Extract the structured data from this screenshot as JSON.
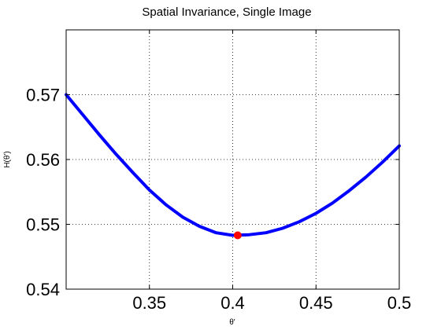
{
  "chart_data": {
    "type": "line",
    "title": "Spatial Invariance, Single Image",
    "xlabel": "θ'",
    "ylabel": "H(θ')",
    "xlim": [
      0.3,
      0.5
    ],
    "ylim": [
      0.54,
      0.58
    ],
    "xticks": [
      0.35,
      0.4,
      0.45,
      0.5
    ],
    "xtick_labels": [
      "0.35",
      "0.4",
      "0.45",
      "0.5"
    ],
    "yticks": [
      0.54,
      0.55,
      0.56,
      0.57
    ],
    "ytick_labels": [
      "0.54",
      "0.55",
      "0.56",
      "0.57"
    ],
    "grid": true,
    "series": [
      {
        "color": "#0000ff",
        "x": [
          0.3,
          0.31,
          0.32,
          0.33,
          0.34,
          0.35,
          0.36,
          0.37,
          0.38,
          0.39,
          0.4,
          0.41,
          0.42,
          0.43,
          0.44,
          0.45,
          0.46,
          0.47,
          0.48,
          0.49,
          0.5
        ],
        "y": [
          0.57,
          0.5669,
          0.5638,
          0.5608,
          0.558,
          0.5553,
          0.553,
          0.5511,
          0.5497,
          0.5487,
          0.5483,
          0.5484,
          0.5487,
          0.5494,
          0.5504,
          0.5517,
          0.5533,
          0.5552,
          0.5573,
          0.5596,
          0.5621
        ]
      }
    ],
    "marker": {
      "x": 0.403,
      "y": 0.5483,
      "color": "#ff0000"
    }
  }
}
